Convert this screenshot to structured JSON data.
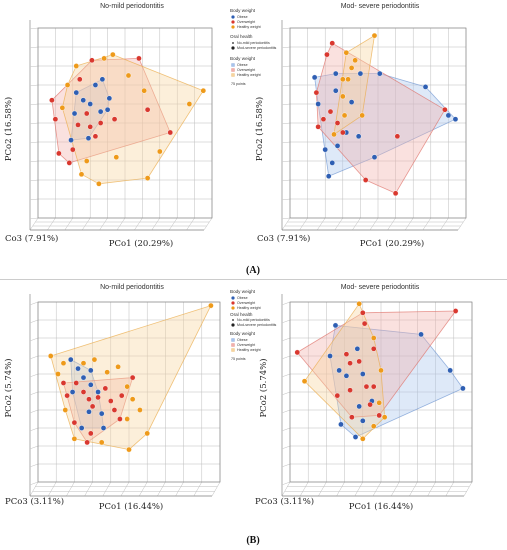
{
  "figure_labels": {
    "a": "(A)",
    "b": "(B)"
  },
  "colors": {
    "obese": "#2f5fb3",
    "overweight": "#d9382f",
    "healthy_weight": "#ee9a1a",
    "hull_obese": "#a8c4ec",
    "hull_overweight": "#f2b0ac",
    "hull_healthy_weight": "#f7d49e"
  },
  "legend": {
    "body_weight_title": "Body weight",
    "obese": "Obese",
    "overweight": "Overweight",
    "healthy_weight": "Healthy weight",
    "oral_health_title": "Oral health",
    "no_mild": "No-mild periodontitis",
    "mod_severe": "Mod-severe periodontitis",
    "body_weight_title2": "Body weight",
    "points": "75 points"
  },
  "chart_data": [
    {
      "type": "scatter",
      "panel": "A",
      "title": "No-mild periodontitis",
      "xlabel": "PCo1 (20.29%)",
      "ylabel": "PCo2 (16.58%)",
      "zlabel": "Co3 (7.91%)",
      "grid": true,
      "legend_position": "top-center",
      "series": [
        {
          "name": "Obese",
          "color": "obese",
          "points": [
            [
              0.21,
              0.55
            ],
            [
              0.26,
              0.62
            ],
            [
              0.3,
              0.6
            ],
            [
              0.22,
              0.66
            ],
            [
              0.33,
              0.7
            ],
            [
              0.37,
              0.73
            ],
            [
              0.4,
              0.57
            ],
            [
              0.41,
              0.63
            ],
            [
              0.36,
              0.56
            ],
            [
              0.19,
              0.41
            ],
            [
              0.29,
              0.42
            ]
          ]
        },
        {
          "name": "Overweight",
          "color": "overweight",
          "points": [
            [
              0.08,
              0.62
            ],
            [
              0.1,
              0.52
            ],
            [
              0.12,
              0.34
            ],
            [
              0.2,
              0.36
            ],
            [
              0.23,
              0.49
            ],
            [
              0.28,
              0.55
            ],
            [
              0.3,
              0.48
            ],
            [
              0.33,
              0.43
            ],
            [
              0.36,
              0.5
            ],
            [
              0.44,
              0.52
            ],
            [
              0.24,
              0.73
            ],
            [
              0.31,
              0.83
            ],
            [
              0.58,
              0.84
            ],
            [
              0.63,
              0.57
            ],
            [
              0.76,
              0.45
            ],
            [
              0.18,
              0.29
            ]
          ]
        },
        {
          "name": "Healthy weight",
          "color": "healthy_weight",
          "points": [
            [
              0.22,
              0.8
            ],
            [
              0.38,
              0.84
            ],
            [
              0.43,
              0.86
            ],
            [
              0.52,
              0.75
            ],
            [
              0.61,
              0.67
            ],
            [
              0.95,
              0.67
            ],
            [
              0.87,
              0.6
            ],
            [
              0.63,
              0.21
            ],
            [
              0.7,
              0.35
            ],
            [
              0.45,
              0.32
            ],
            [
              0.35,
              0.18
            ],
            [
              0.25,
              0.23
            ],
            [
              0.14,
              0.58
            ],
            [
              0.28,
              0.3
            ],
            [
              0.17,
              0.7
            ]
          ]
        }
      ]
    },
    {
      "type": "scatter",
      "panel": "A",
      "title": "Mod- severe periodontitis",
      "xlabel": "PCo1 (20.29%)",
      "ylabel": "PCo2 (16.58%)",
      "zlabel": "Co3 (7.91%)",
      "grid": true,
      "series": [
        {
          "name": "Obese",
          "color": "obese",
          "points": [
            [
              0.26,
              0.76
            ],
            [
              0.4,
              0.76
            ],
            [
              0.51,
              0.76
            ],
            [
              0.14,
              0.74
            ],
            [
              0.16,
              0.6
            ],
            [
              0.26,
              0.67
            ],
            [
              0.35,
              0.61
            ],
            [
              0.32,
              0.45
            ],
            [
              0.39,
              0.43
            ],
            [
              0.27,
              0.38
            ],
            [
              0.2,
              0.36
            ],
            [
              0.24,
              0.29
            ],
            [
              0.22,
              0.22
            ],
            [
              0.77,
              0.69
            ],
            [
              0.9,
              0.54
            ],
            [
              0.94,
              0.52
            ],
            [
              0.48,
              0.32
            ]
          ]
        },
        {
          "name": "Overweight",
          "color": "overweight",
          "points": [
            [
              0.21,
              0.86
            ],
            [
              0.24,
              0.92
            ],
            [
              0.88,
              0.57
            ],
            [
              0.61,
              0.43
            ],
            [
              0.23,
              0.56
            ],
            [
              0.19,
              0.52
            ],
            [
              0.27,
              0.5
            ],
            [
              0.3,
              0.45
            ],
            [
              0.16,
              0.48
            ],
            [
              0.6,
              0.13
            ],
            [
              0.43,
              0.2
            ],
            [
              0.15,
              0.66
            ]
          ]
        },
        {
          "name": "Healthy weight",
          "color": "healthy_weight",
          "points": [
            [
              0.48,
              0.96
            ],
            [
              0.32,
              0.87
            ],
            [
              0.37,
              0.83
            ],
            [
              0.35,
              0.79
            ],
            [
              0.33,
              0.73
            ],
            [
              0.3,
              0.73
            ],
            [
              0.3,
              0.64
            ],
            [
              0.31,
              0.54
            ],
            [
              0.41,
              0.54
            ],
            [
              0.25,
              0.44
            ]
          ]
        }
      ]
    },
    {
      "type": "scatter",
      "panel": "B",
      "title": "No-mild periodontitis",
      "xlabel": "PCo1 (16.44%)",
      "ylabel": "PCo2 (5.74%)",
      "zlabel": "PCo3 (3.11%)",
      "grid": true,
      "legend_position": "top-center",
      "series": [
        {
          "name": "Obese",
          "color": "obese",
          "points": [
            [
              0.18,
              0.68
            ],
            [
              0.22,
              0.63
            ],
            [
              0.25,
              0.58
            ],
            [
              0.29,
              0.62
            ],
            [
              0.29,
              0.54
            ],
            [
              0.33,
              0.5
            ],
            [
              0.28,
              0.39
            ],
            [
              0.35,
              0.38
            ],
            [
              0.36,
              0.3
            ],
            [
              0.19,
              0.5
            ],
            [
              0.24,
              0.3
            ]
          ]
        },
        {
          "name": "Overweight",
          "color": "overweight",
          "points": [
            [
              0.14,
              0.55
            ],
            [
              0.16,
              0.48
            ],
            [
              0.21,
              0.55
            ],
            [
              0.25,
              0.5
            ],
            [
              0.28,
              0.46
            ],
            [
              0.3,
              0.42
            ],
            [
              0.33,
              0.47
            ],
            [
              0.37,
              0.52
            ],
            [
              0.4,
              0.45
            ],
            [
              0.42,
              0.4
            ],
            [
              0.45,
              0.35
            ],
            [
              0.46,
              0.48
            ],
            [
              0.52,
              0.58
            ],
            [
              0.29,
              0.27
            ],
            [
              0.2,
              0.33
            ],
            [
              0.27,
              0.22
            ]
          ]
        },
        {
          "name": "Healthy weight",
          "color": "healthy_weight",
          "points": [
            [
              0.07,
              0.7
            ],
            [
              0.11,
              0.6
            ],
            [
              0.14,
              0.66
            ],
            [
              0.15,
              0.4
            ],
            [
              0.25,
              0.66
            ],
            [
              0.31,
              0.68
            ],
            [
              0.38,
              0.61
            ],
            [
              0.44,
              0.64
            ],
            [
              0.49,
              0.53
            ],
            [
              0.52,
              0.46
            ],
            [
              0.56,
              0.4
            ],
            [
              0.49,
              0.35
            ],
            [
              0.6,
              0.27
            ],
            [
              0.35,
              0.22
            ],
            [
              0.2,
              0.24
            ],
            [
              0.5,
              0.18
            ],
            [
              0.95,
              0.98
            ]
          ]
        }
      ]
    },
    {
      "type": "scatter",
      "panel": "B",
      "title": "Mod- severe periodontitis",
      "xlabel": "PCo1 (16.44%)",
      "ylabel": "PCo2 (5.74%)",
      "zlabel": "PCo3 (3.11%)",
      "grid": true,
      "series": [
        {
          "name": "Obese",
          "color": "obese",
          "points": [
            [
              0.25,
              0.87
            ],
            [
              0.27,
              0.62
            ],
            [
              0.37,
              0.74
            ],
            [
              0.22,
              0.7
            ],
            [
              0.4,
              0.6
            ],
            [
              0.31,
              0.59
            ],
            [
              0.38,
              0.42
            ],
            [
              0.4,
              0.34
            ],
            [
              0.45,
              0.45
            ],
            [
              0.28,
              0.32
            ],
            [
              0.36,
              0.25
            ],
            [
              0.72,
              0.82
            ],
            [
              0.88,
              0.62
            ],
            [
              0.95,
              0.52
            ]
          ]
        },
        {
          "name": "Overweight",
          "color": "overweight",
          "points": [
            [
              0.4,
              0.94
            ],
            [
              0.41,
              0.88
            ],
            [
              0.31,
              0.71
            ],
            [
              0.46,
              0.74
            ],
            [
              0.38,
              0.67
            ],
            [
              0.33,
              0.66
            ],
            [
              0.42,
              0.53
            ],
            [
              0.46,
              0.53
            ],
            [
              0.33,
              0.51
            ],
            [
              0.26,
              0.48
            ],
            [
              0.49,
              0.37
            ],
            [
              0.34,
              0.36
            ],
            [
              0.44,
              0.43
            ],
            [
              0.91,
              0.95
            ],
            [
              0.04,
              0.72
            ]
          ]
        },
        {
          "name": "Healthy weight",
          "color": "healthy_weight",
          "points": [
            [
              0.38,
              0.99
            ],
            [
              0.46,
              0.8
            ],
            [
              0.5,
              0.62
            ],
            [
              0.08,
              0.56
            ],
            [
              0.49,
              0.44
            ],
            [
              0.46,
              0.31
            ],
            [
              0.4,
              0.24
            ],
            [
              0.52,
              0.36
            ]
          ]
        }
      ]
    }
  ]
}
